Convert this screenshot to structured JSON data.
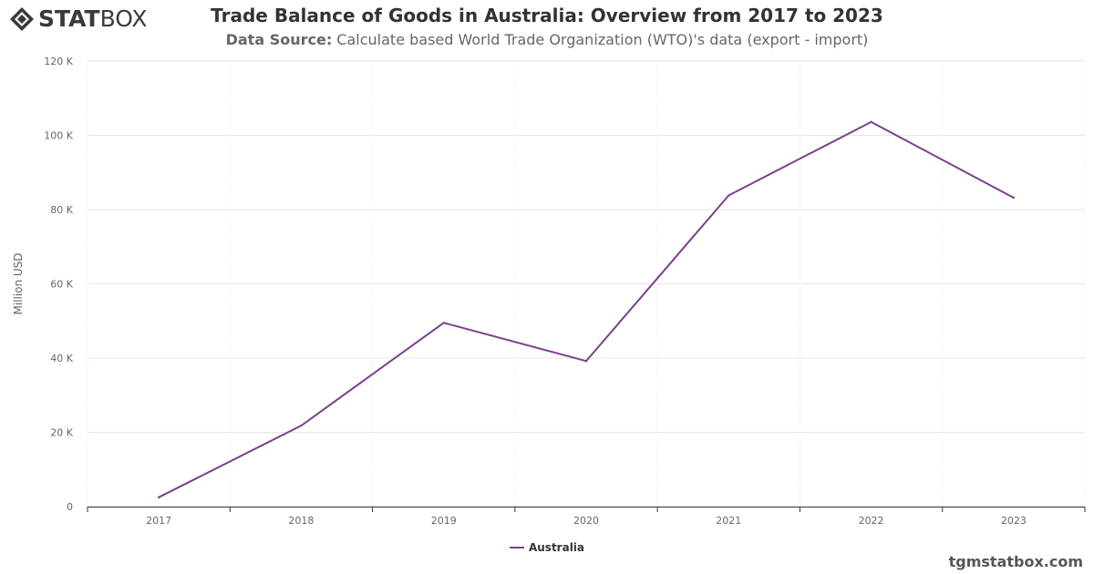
{
  "brand": {
    "logo_text_bold": "STAT",
    "logo_text_light": "BOX"
  },
  "header": {
    "title": "Trade Balance of Goods in Australia: Overview from 2017 to 2023",
    "subtitle_label": "Data Source:",
    "subtitle_text": " Calculate based World Trade Organization (WTO)'s data (export - import)"
  },
  "footer": {
    "watermark": "tgmstatbox.com"
  },
  "colors": {
    "series": "#7b3f8f",
    "grid": "#e6e6e6",
    "axis": "#333333",
    "text": "#666666"
  },
  "chart_data": {
    "type": "line",
    "title": "Trade Balance of Goods in Australia: Overview from 2017 to 2023",
    "xlabel": "",
    "ylabel": "Million USD",
    "categories": [
      "2017",
      "2018",
      "2019",
      "2020",
      "2021",
      "2022",
      "2023"
    ],
    "series": [
      {
        "name": "Australia",
        "values": [
          2500,
          21800,
          49500,
          39200,
          83800,
          103600,
          83200
        ]
      }
    ],
    "ylim": [
      0,
      120000
    ],
    "yticks": [
      0,
      20000,
      40000,
      60000,
      80000,
      100000,
      120000
    ],
    "ytick_labels": [
      "0",
      "20 K",
      "40 K",
      "60 K",
      "80 K",
      "100 K",
      "120 K"
    ],
    "grid": true,
    "legend_position": "bottom-center"
  }
}
